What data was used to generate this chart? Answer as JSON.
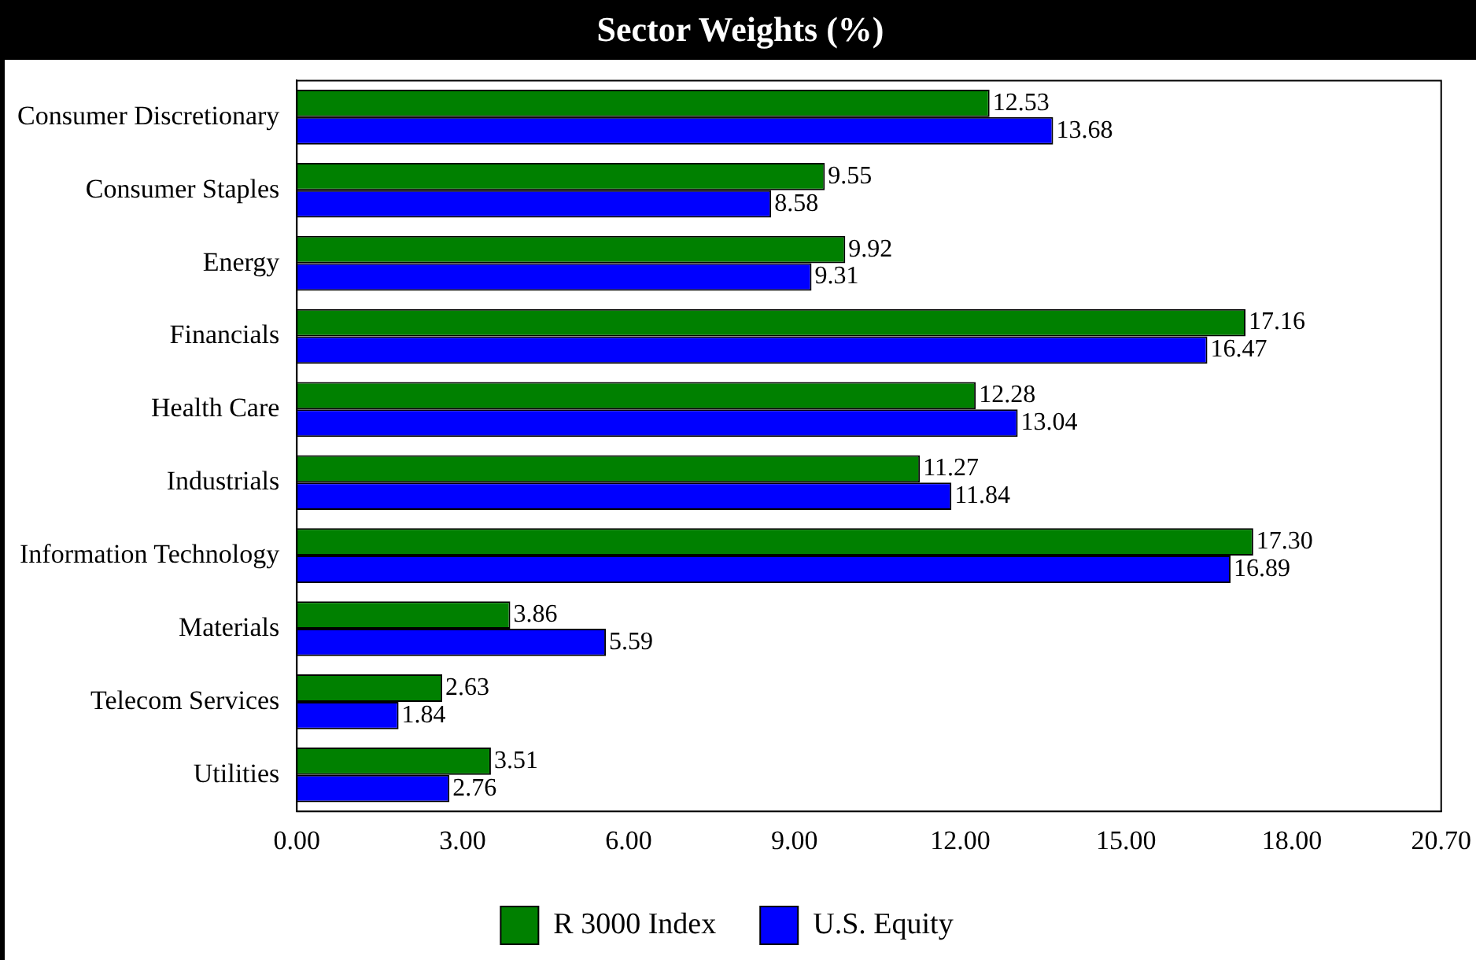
{
  "chart_data": {
    "type": "bar",
    "orientation": "horizontal",
    "title": "Sector Weights (%)",
    "categories": [
      "Consumer Discretionary",
      "Consumer Staples",
      "Energy",
      "Financials",
      "Health Care",
      "Industrials",
      "Information Technology",
      "Materials",
      "Telecom Services",
      "Utilities"
    ],
    "series": [
      {
        "name": "R 3000 Index",
        "color": "#008000",
        "values": [
          12.53,
          9.55,
          9.92,
          17.16,
          12.28,
          11.27,
          17.3,
          3.86,
          2.63,
          3.51
        ],
        "value_labels": [
          "12.53",
          "9.55",
          "9.92",
          "17.16",
          "12.28",
          "11.27",
          "17.30",
          "3.86",
          "2.63",
          "3.51"
        ]
      },
      {
        "name": "U.S. Equity",
        "color": "#0000ff",
        "values": [
          13.68,
          8.58,
          9.31,
          16.47,
          13.04,
          11.84,
          16.89,
          5.59,
          1.84,
          2.76
        ],
        "value_labels": [
          "13.68",
          "8.58",
          "9.31",
          "16.47",
          "13.04",
          "11.84",
          "16.89",
          "5.59",
          "1.84",
          "2.76"
        ]
      }
    ],
    "xlim": [
      0,
      20.7
    ],
    "xticks": [
      {
        "value": 0,
        "label": "0.00"
      },
      {
        "value": 3,
        "label": "3.00"
      },
      {
        "value": 6,
        "label": "6.00"
      },
      {
        "value": 9,
        "label": "9.00"
      },
      {
        "value": 12,
        "label": "12.00"
      },
      {
        "value": 15,
        "label": "15.00"
      },
      {
        "value": 18,
        "label": "18.00"
      },
      {
        "value": 20.7,
        "label": "20.70"
      }
    ],
    "legend": "bottom",
    "grid": false
  }
}
